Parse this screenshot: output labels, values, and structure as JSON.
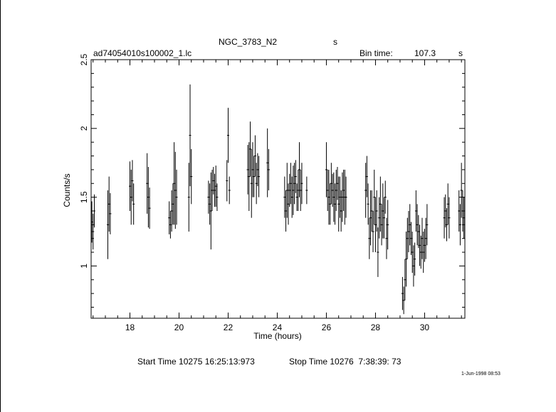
{
  "header": {
    "title": "NGC_3783_N2",
    "title_suffix": "s",
    "file_name": "ad74054010s100002_1.lc",
    "bin_time_label": "Bin time:",
    "bin_time_value": "107.3",
    "bin_time_unit": "s"
  },
  "footer": {
    "start_time": "Start Time 10275 16:25:13:973",
    "stop_time": "Stop Time 10276  7:38:39: 73",
    "stamp": "1-Jun-1998 08:53"
  },
  "chart_data": {
    "type": "scatter",
    "xlabel": "Time (hours)",
    "ylabel": "Counts/s",
    "xlim": [
      16.42,
      31.64
    ],
    "ylim": [
      0.62,
      2.5
    ],
    "xticks": [
      18,
      20,
      22,
      24,
      26,
      28,
      30
    ],
    "yticks": [
      1,
      1.5,
      2,
      2.5
    ],
    "grid": false,
    "series": [
      {
        "points": [
          [
            16.45,
            1.32,
            0.15
          ],
          [
            16.5,
            1.25,
            0.13
          ],
          [
            16.55,
            1.4,
            0.12
          ],
          [
            17.1,
            1.3,
            0.25
          ],
          [
            17.15,
            1.45,
            0.2
          ],
          [
            17.2,
            1.38,
            0.15
          ],
          [
            18.0,
            1.58,
            0.18
          ],
          [
            18.05,
            1.5,
            0.2
          ],
          [
            18.1,
            1.62,
            0.15
          ],
          [
            18.15,
            1.45,
            0.15
          ],
          [
            18.7,
            1.6,
            0.22
          ],
          [
            18.75,
            1.5,
            0.22
          ],
          [
            18.8,
            1.42,
            0.15
          ],
          [
            19.6,
            1.35,
            0.12
          ],
          [
            19.65,
            1.3,
            0.1
          ],
          [
            19.7,
            1.4,
            0.15
          ],
          [
            19.75,
            1.45,
            0.15
          ],
          [
            19.8,
            1.6,
            0.3
          ],
          [
            19.85,
            1.55,
            0.28
          ],
          [
            19.9,
            1.5,
            0.2
          ],
          [
            20.4,
            1.5,
            0.25
          ],
          [
            20.45,
            1.95,
            0.37
          ],
          [
            20.5,
            1.65,
            0.2
          ],
          [
            21.2,
            1.5,
            0.12
          ],
          [
            21.25,
            1.45,
            0.15
          ],
          [
            21.3,
            1.4,
            0.28
          ],
          [
            21.35,
            1.55,
            0.15
          ],
          [
            21.4,
            1.62,
            0.1
          ],
          [
            21.45,
            1.55,
            0.12
          ],
          [
            21.5,
            1.58,
            0.15
          ],
          [
            21.55,
            1.5,
            0.1
          ],
          [
            21.95,
            1.62,
            0.15
          ],
          [
            22.0,
            1.95,
            0.2
          ],
          [
            22.05,
            1.55,
            0.1
          ],
          [
            22.8,
            1.7,
            0.18
          ],
          [
            22.85,
            1.65,
            0.25
          ],
          [
            22.9,
            1.85,
            0.2
          ],
          [
            22.95,
            1.6,
            0.25
          ],
          [
            23.0,
            1.7,
            0.2
          ],
          [
            23.05,
            1.65,
            0.15
          ],
          [
            23.1,
            1.8,
            0.15
          ],
          [
            23.15,
            1.6,
            0.15
          ],
          [
            23.2,
            1.7,
            0.12
          ],
          [
            23.25,
            1.65,
            0.15
          ],
          [
            23.6,
            1.75,
            0.25
          ],
          [
            23.65,
            1.7,
            0.15
          ],
          [
            24.3,
            1.5,
            0.15
          ],
          [
            24.35,
            1.4,
            0.15
          ],
          [
            24.4,
            1.55,
            0.2
          ],
          [
            24.45,
            1.45,
            0.15
          ],
          [
            24.5,
            1.55,
            0.12
          ],
          [
            24.55,
            1.6,
            0.15
          ],
          [
            24.6,
            1.5,
            0.15
          ],
          [
            24.65,
            1.55,
            0.18
          ],
          [
            24.7,
            1.6,
            0.15
          ],
          [
            24.75,
            1.65,
            0.12
          ],
          [
            24.8,
            1.5,
            0.1
          ],
          [
            24.85,
            1.55,
            0.15
          ],
          [
            24.9,
            1.7,
            0.2
          ],
          [
            24.95,
            1.55,
            0.15
          ],
          [
            25.0,
            1.6,
            0.15
          ],
          [
            25.2,
            1.55,
            0.1
          ],
          [
            26.0,
            1.7,
            0.2
          ],
          [
            26.05,
            1.55,
            0.15
          ],
          [
            26.1,
            1.5,
            0.2
          ],
          [
            26.15,
            1.45,
            0.15
          ],
          [
            26.2,
            1.6,
            0.15
          ],
          [
            26.25,
            1.55,
            0.12
          ],
          [
            26.3,
            1.5,
            0.18
          ],
          [
            26.35,
            1.45,
            0.15
          ],
          [
            26.4,
            1.55,
            0.15
          ],
          [
            26.45,
            1.6,
            0.12
          ],
          [
            26.5,
            1.45,
            0.2
          ],
          [
            26.55,
            1.5,
            0.15
          ],
          [
            26.6,
            1.4,
            0.15
          ],
          [
            26.65,
            1.5,
            0.18
          ],
          [
            26.7,
            1.55,
            0.15
          ],
          [
            26.75,
            1.5,
            0.2
          ],
          [
            26.8,
            1.5,
            0.15
          ],
          [
            27.6,
            1.55,
            0.2
          ],
          [
            27.65,
            1.65,
            0.15
          ],
          [
            27.7,
            1.45,
            0.15
          ],
          [
            27.75,
            1.2,
            0.15
          ],
          [
            27.8,
            1.35,
            0.2
          ],
          [
            27.85,
            1.4,
            0.15
          ],
          [
            27.9,
            1.25,
            0.15
          ],
          [
            27.95,
            1.5,
            0.2
          ],
          [
            28.0,
            1.3,
            0.2
          ],
          [
            28.05,
            1.4,
            0.15
          ],
          [
            28.1,
            1.1,
            0.18
          ],
          [
            28.15,
            1.35,
            0.15
          ],
          [
            28.2,
            1.45,
            0.2
          ],
          [
            28.25,
            1.3,
            0.15
          ],
          [
            28.3,
            1.4,
            0.2
          ],
          [
            28.35,
            1.35,
            0.15
          ],
          [
            28.4,
            1.5,
            0.12
          ],
          [
            28.45,
            1.2,
            0.15
          ],
          [
            28.5,
            1.3,
            0.18
          ],
          [
            29.1,
            0.8,
            0.12
          ],
          [
            29.15,
            0.75,
            0.1
          ],
          [
            29.2,
            0.9,
            0.15
          ],
          [
            29.25,
            1.05,
            0.2
          ],
          [
            29.3,
            1.2,
            0.15
          ],
          [
            29.35,
            1.25,
            0.15
          ],
          [
            29.4,
            1.3,
            0.15
          ],
          [
            29.45,
            1.2,
            0.12
          ],
          [
            29.5,
            1.1,
            0.15
          ],
          [
            29.55,
            1.0,
            0.15
          ],
          [
            29.6,
            1.05,
            0.12
          ],
          [
            29.65,
            1.4,
            0.15
          ],
          [
            29.7,
            1.3,
            0.15
          ],
          [
            29.75,
            1.25,
            0.12
          ],
          [
            29.8,
            1.15,
            0.15
          ],
          [
            29.85,
            1.1,
            0.12
          ],
          [
            29.9,
            1.2,
            0.15
          ],
          [
            29.95,
            1.1,
            0.15
          ],
          [
            30.0,
            1.15,
            0.12
          ],
          [
            30.05,
            1.2,
            0.15
          ],
          [
            30.1,
            1.3,
            0.15
          ],
          [
            30.8,
            1.35,
            0.15
          ],
          [
            30.85,
            1.4,
            0.12
          ],
          [
            30.9,
            1.3,
            0.12
          ],
          [
            30.95,
            1.45,
            0.15
          ],
          [
            31.0,
            1.35,
            0.15
          ],
          [
            31.4,
            1.4,
            0.15
          ],
          [
            31.45,
            1.3,
            0.15
          ],
          [
            31.5,
            1.55,
            0.2
          ],
          [
            31.55,
            1.4,
            0.15
          ],
          [
            31.6,
            1.35,
            0.15
          ]
        ]
      }
    ]
  }
}
